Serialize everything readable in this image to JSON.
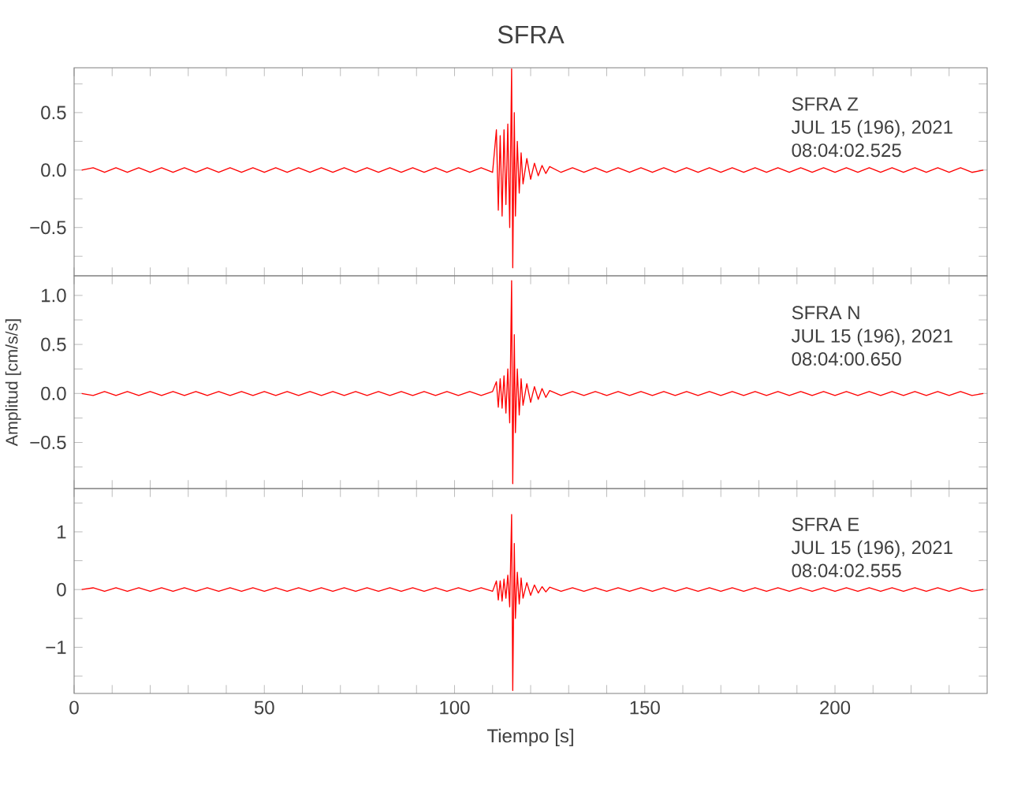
{
  "chart_data": [
    {
      "type": "line",
      "title": "SFRA",
      "color": "#ff0000",
      "tick_labels": "y",
      "annotations": [
        "SFRA   Z",
        "JUL 15 (196), 2021",
        "08:04:02.525"
      ],
      "xlim": [
        0,
        240
      ],
      "ylim": [
        -0.92,
        0.89
      ],
      "xticks": [
        0,
        {
          "value": 10,
          "label": null
        },
        {
          "value": 20,
          "label": null
        },
        {
          "value": 30,
          "label": null
        },
        {
          "value": 40,
          "label": null
        },
        50,
        {
          "value": 60,
          "label": null
        },
        {
          "value": 70,
          "label": null
        },
        {
          "value": 80,
          "label": null
        },
        {
          "value": 90,
          "label": null
        },
        100,
        {
          "value": 110,
          "label": null
        },
        {
          "value": 120,
          "label": null
        },
        {
          "value": 130,
          "label": null
        },
        {
          "value": 140,
          "label": null
        },
        150,
        {
          "value": 160,
          "label": null
        },
        {
          "value": 170,
          "label": null
        },
        {
          "value": 180,
          "label": null
        },
        {
          "value": 190,
          "label": null
        },
        200,
        {
          "value": 210,
          "label": null
        },
        {
          "value": 220,
          "label": null
        },
        {
          "value": 230,
          "label": null
        }
      ],
      "yticks": [
        {
          "value": -0.75,
          "label": null
        },
        {
          "value": -0.5,
          "label": "−0.5"
        },
        {
          "value": -0.25,
          "label": null
        },
        {
          "value": 0,
          "label": "0.0"
        },
        {
          "value": 0.25,
          "label": null
        },
        0.5,
        {
          "value": 0.75,
          "label": null
        }
      ],
      "x": [
        2,
        5,
        8,
        11,
        14,
        17,
        20,
        23,
        26,
        29,
        32,
        35,
        38,
        41,
        44,
        47,
        50,
        53,
        56,
        59,
        62,
        65,
        68,
        71,
        74,
        77,
        80,
        83,
        86,
        89,
        92,
        95,
        98,
        101,
        104,
        107,
        110,
        111,
        111.5,
        112,
        112.5,
        113,
        113.5,
        114,
        114.5,
        115,
        115.3,
        115.7,
        116,
        116.5,
        117,
        117.5,
        118,
        119,
        120,
        121,
        122,
        123,
        124,
        125,
        128,
        131,
        134,
        137,
        140,
        143,
        146,
        149,
        152,
        155,
        158,
        161,
        164,
        167,
        170,
        173,
        176,
        179,
        182,
        185,
        188,
        191,
        194,
        197,
        200,
        203,
        206,
        209,
        212,
        215,
        218,
        221,
        224,
        227,
        230,
        233,
        236,
        239
      ],
      "values": [
        0.0,
        0.02,
        -0.02,
        0.02,
        -0.02,
        0.02,
        -0.02,
        0.02,
        -0.02,
        0.02,
        -0.02,
        0.02,
        -0.02,
        0.02,
        -0.02,
        0.02,
        -0.02,
        0.02,
        -0.02,
        0.02,
        -0.02,
        0.02,
        -0.02,
        0.02,
        -0.02,
        0.02,
        -0.02,
        0.02,
        -0.02,
        0.02,
        -0.02,
        0.02,
        -0.02,
        0.02,
        -0.02,
        0.02,
        -0.02,
        0.35,
        -0.35,
        0.3,
        -0.4,
        0.35,
        -0.3,
        0.4,
        -0.5,
        0.88,
        -0.85,
        0.5,
        -0.4,
        0.25,
        -0.2,
        0.15,
        -0.12,
        0.1,
        -0.08,
        0.06,
        -0.05,
        0.04,
        -0.03,
        0.03,
        -0.02,
        0.02,
        -0.02,
        0.02,
        -0.02,
        0.02,
        -0.02,
        0.02,
        -0.02,
        0.02,
        -0.02,
        0.02,
        -0.02,
        0.02,
        -0.02,
        0.02,
        -0.02,
        0.02,
        -0.02,
        0.02,
        -0.02,
        0.02,
        -0.02,
        0.02,
        -0.02,
        0.02,
        -0.02,
        0.02,
        -0.02,
        0.02,
        -0.02,
        0.02,
        -0.02,
        0.02,
        -0.02,
        0.02,
        -0.02,
        0.0
      ]
    },
    {
      "type": "line",
      "ylabel": "Amplitud [cm/s/s]",
      "color": "#ff0000",
      "tick_labels": "y",
      "annotations": [
        "SFRA   N",
        "JUL 15 (196), 2021",
        "08:04:00.650"
      ],
      "xlim": [
        0,
        240
      ],
      "ylim": [
        -0.97,
        1.2
      ],
      "xticks": [
        0,
        {
          "value": 10,
          "label": null
        },
        {
          "value": 20,
          "label": null
        },
        {
          "value": 30,
          "label": null
        },
        {
          "value": 40,
          "label": null
        },
        50,
        {
          "value": 60,
          "label": null
        },
        {
          "value": 70,
          "label": null
        },
        {
          "value": 80,
          "label": null
        },
        {
          "value": 90,
          "label": null
        },
        100,
        {
          "value": 110,
          "label": null
        },
        {
          "value": 120,
          "label": null
        },
        {
          "value": 130,
          "label": null
        },
        {
          "value": 140,
          "label": null
        },
        150,
        {
          "value": 160,
          "label": null
        },
        {
          "value": 170,
          "label": null
        },
        {
          "value": 180,
          "label": null
        },
        {
          "value": 190,
          "label": null
        },
        200,
        {
          "value": 210,
          "label": null
        },
        {
          "value": 220,
          "label": null
        },
        {
          "value": 230,
          "label": null
        }
      ],
      "yticks": [
        {
          "value": -0.75,
          "label": null
        },
        {
          "value": -0.5,
          "label": "−0.5"
        },
        {
          "value": -0.25,
          "label": null
        },
        {
          "value": 0,
          "label": "0.0"
        },
        {
          "value": 0.25,
          "label": null
        },
        0.5,
        {
          "value": 0.75,
          "label": null
        },
        {
          "value": 1,
          "label": "1.0"
        }
      ],
      "x": [
        2,
        5,
        8,
        11,
        14,
        17,
        20,
        23,
        26,
        29,
        32,
        35,
        38,
        41,
        44,
        47,
        50,
        53,
        56,
        59,
        62,
        65,
        68,
        71,
        74,
        77,
        80,
        83,
        86,
        89,
        92,
        95,
        98,
        101,
        104,
        107,
        110,
        111,
        111.5,
        112,
        112.5,
        113,
        113.5,
        114,
        114.5,
        115,
        115.3,
        115.7,
        116,
        116.5,
        117,
        117.5,
        118,
        119,
        120,
        121,
        122,
        123,
        124,
        125,
        128,
        131,
        134,
        137,
        140,
        143,
        146,
        149,
        152,
        155,
        158,
        161,
        164,
        167,
        170,
        173,
        176,
        179,
        182,
        185,
        188,
        191,
        194,
        197,
        200,
        203,
        206,
        209,
        212,
        215,
        218,
        221,
        224,
        227,
        230,
        233,
        236,
        239
      ],
      "values": [
        0.0,
        -0.02,
        0.02,
        -0.02,
        0.02,
        -0.02,
        0.02,
        -0.02,
        0.02,
        -0.02,
        0.02,
        -0.02,
        0.02,
        -0.02,
        0.02,
        -0.02,
        0.02,
        -0.02,
        0.02,
        -0.02,
        0.02,
        -0.02,
        0.02,
        -0.02,
        0.02,
        -0.02,
        0.02,
        -0.02,
        0.02,
        -0.02,
        0.02,
        -0.02,
        0.02,
        -0.02,
        0.02,
        -0.02,
        0.02,
        0.12,
        -0.14,
        0.15,
        -0.15,
        0.18,
        -0.2,
        0.25,
        -0.3,
        1.15,
        -0.92,
        0.6,
        -0.4,
        0.25,
        -0.22,
        0.15,
        -0.12,
        0.1,
        -0.09,
        0.07,
        -0.06,
        0.05,
        -0.04,
        0.03,
        -0.02,
        0.02,
        -0.02,
        0.02,
        -0.02,
        0.02,
        -0.02,
        0.02,
        -0.02,
        0.02,
        -0.02,
        0.02,
        -0.02,
        0.02,
        -0.02,
        0.02,
        -0.02,
        0.02,
        -0.02,
        0.02,
        -0.02,
        0.02,
        -0.02,
        0.02,
        -0.02,
        0.02,
        -0.02,
        0.02,
        -0.02,
        0.02,
        -0.02,
        0.02,
        -0.02,
        0.02,
        -0.02,
        0.02,
        -0.02,
        0.0
      ]
    },
    {
      "type": "line",
      "xlabel": "Tiempo [s]",
      "color": "#ff0000",
      "annotations": [
        "SFRA   E",
        "JUL 15 (196), 2021",
        "08:04:02.555"
      ],
      "xlim": [
        0,
        240
      ],
      "ylim": [
        -1.8,
        1.75
      ],
      "xticks": [
        0,
        {
          "value": 10,
          "label": null
        },
        {
          "value": 20,
          "label": null
        },
        {
          "value": 30,
          "label": null
        },
        {
          "value": 40,
          "label": null
        },
        50,
        {
          "value": 60,
          "label": null
        },
        {
          "value": 70,
          "label": null
        },
        {
          "value": 80,
          "label": null
        },
        {
          "value": 90,
          "label": null
        },
        100,
        {
          "value": 110,
          "label": null
        },
        {
          "value": 120,
          "label": null
        },
        {
          "value": 130,
          "label": null
        },
        {
          "value": 140,
          "label": null
        },
        150,
        {
          "value": 160,
          "label": null
        },
        {
          "value": 170,
          "label": null
        },
        {
          "value": 180,
          "label": null
        },
        {
          "value": 190,
          "label": null
        },
        200,
        {
          "value": 210,
          "label": null
        },
        {
          "value": 220,
          "label": null
        },
        {
          "value": 230,
          "label": null
        }
      ],
      "yticks": [
        {
          "value": -1.5,
          "label": null
        },
        {
          "value": -1,
          "label": "−1"
        },
        {
          "value": -0.5,
          "label": null
        },
        0,
        {
          "value": 0.5,
          "label": null
        },
        1,
        {
          "value": 1.5,
          "label": null
        }
      ],
      "x": [
        2,
        5,
        8,
        11,
        14,
        17,
        20,
        23,
        26,
        29,
        32,
        35,
        38,
        41,
        44,
        47,
        50,
        53,
        56,
        59,
        62,
        65,
        68,
        71,
        74,
        77,
        80,
        83,
        86,
        89,
        92,
        95,
        98,
        101,
        104,
        107,
        110,
        111,
        111.5,
        112,
        112.5,
        113,
        113.5,
        114,
        114.5,
        115,
        115.3,
        115.7,
        116,
        116.5,
        117,
        117.5,
        118,
        119,
        120,
        121,
        122,
        123,
        124,
        125,
        128,
        131,
        134,
        137,
        140,
        143,
        146,
        149,
        152,
        155,
        158,
        161,
        164,
        167,
        170,
        173,
        176,
        179,
        182,
        185,
        188,
        191,
        194,
        197,
        200,
        203,
        206,
        209,
        212,
        215,
        218,
        221,
        224,
        227,
        230,
        233,
        236,
        239
      ],
      "values": [
        0.0,
        0.03,
        -0.03,
        0.03,
        -0.03,
        0.03,
        -0.03,
        0.03,
        -0.03,
        0.03,
        -0.03,
        0.03,
        -0.03,
        0.03,
        -0.03,
        0.03,
        -0.03,
        0.03,
        -0.03,
        0.03,
        -0.03,
        0.03,
        -0.03,
        0.03,
        -0.03,
        0.03,
        -0.03,
        0.03,
        -0.03,
        0.03,
        -0.03,
        0.03,
        -0.03,
        0.03,
        -0.03,
        0.03,
        -0.03,
        0.15,
        -0.18,
        0.15,
        -0.2,
        0.18,
        -0.15,
        0.25,
        -0.3,
        1.3,
        -1.75,
        0.8,
        -0.5,
        0.3,
        -0.25,
        0.2,
        -0.15,
        0.12,
        -0.1,
        0.08,
        -0.06,
        0.05,
        -0.04,
        0.04,
        -0.03,
        0.03,
        -0.03,
        0.03,
        -0.03,
        0.03,
        -0.03,
        0.03,
        -0.03,
        0.03,
        -0.03,
        0.03,
        -0.03,
        0.03,
        -0.03,
        0.03,
        -0.03,
        0.03,
        -0.03,
        0.03,
        -0.03,
        0.03,
        -0.03,
        0.03,
        -0.03,
        0.03,
        -0.03,
        0.03,
        -0.03,
        0.03,
        -0.03,
        0.03,
        -0.03,
        0.03,
        -0.03,
        0.03,
        -0.03,
        0.0
      ]
    }
  ]
}
